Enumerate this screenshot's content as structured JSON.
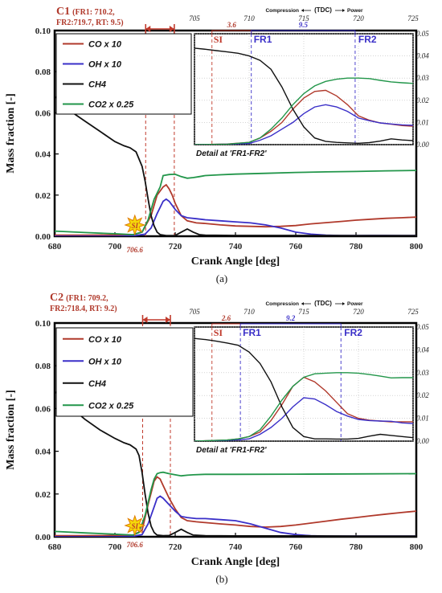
{
  "chart_data": [
    {
      "type": "line",
      "panel_label": "(a)",
      "case_label": "C1",
      "case_detail_line1": "(FR1: 710.2,",
      "case_detail_line2": "FR2:719.7, RT: 9.5)",
      "xlabel": "Crank Angle [deg]",
      "ylabel": "Mass fraction [-]",
      "xlim": [
        680,
        800
      ],
      "ylim": [
        0,
        0.1
      ],
      "x_ticks": [
        "680",
        "700",
        "720",
        "740",
        "760",
        "780",
        "800"
      ],
      "y_ticks": [
        "0.00",
        "0.02",
        "0.04",
        "0.06",
        "0.08",
        "0.10"
      ],
      "si_label": "SI",
      "si_angle_label": "706.6",
      "si_angle": 706.6,
      "fr1": 710.2,
      "fr2": 719.7,
      "legend": [
        "CO x 10",
        "OH x 10",
        "CH4",
        "CO2 x 0.25"
      ],
      "series": [
        {
          "name": "CO x 10",
          "color": "#b0392b",
          "x": [
            680,
            690,
            700,
            706,
            709,
            712,
            714,
            716,
            717,
            718,
            719,
            720,
            722,
            724,
            727,
            730,
            735,
            740,
            745,
            750,
            755,
            760,
            765,
            770,
            775,
            780,
            785,
            790,
            795,
            800
          ],
          "y": [
            0.0005,
            0.0005,
            0.0006,
            0.0007,
            0.002,
            0.01,
            0.02,
            0.024,
            0.025,
            0.023,
            0.02,
            0.016,
            0.01,
            0.0075,
            0.0065,
            0.0062,
            0.0055,
            0.005,
            0.0048,
            0.0046,
            0.0048,
            0.0052,
            0.006,
            0.0066,
            0.0072,
            0.0078,
            0.0083,
            0.0087,
            0.009,
            0.0093
          ]
        },
        {
          "name": "OH x 10",
          "color": "#3a2fc8",
          "x": [
            680,
            690,
            700,
            706,
            710,
            712,
            714,
            716,
            717,
            718,
            719,
            720,
            722,
            724,
            727,
            730,
            735,
            740,
            745,
            750,
            755,
            760,
            765,
            770,
            775,
            780,
            785,
            790,
            795,
            800
          ],
          "y": [
            0.0,
            0.0,
            0.0,
            0.0002,
            0.001,
            0.004,
            0.011,
            0.017,
            0.018,
            0.017,
            0.015,
            0.013,
            0.01,
            0.009,
            0.0085,
            0.008,
            0.0075,
            0.007,
            0.0065,
            0.0055,
            0.004,
            0.002,
            0.001,
            0.0005,
            0.0003,
            0.0003,
            0.0004,
            0.0004,
            0.0003,
            0.0003
          ]
        },
        {
          "name": "CH4",
          "color": "#111111",
          "x": [
            680,
            685,
            690,
            695,
            700,
            703,
            705,
            707,
            709,
            710,
            711,
            712,
            713,
            714,
            715,
            717,
            719,
            720,
            722,
            724,
            726,
            728,
            730,
            740,
            760,
            780,
            800
          ],
          "y": [
            0.068,
            0.061,
            0.056,
            0.051,
            0.046,
            0.044,
            0.043,
            0.041,
            0.034,
            0.027,
            0.018,
            0.01,
            0.005,
            0.002,
            0.0008,
            0.0003,
            0.0003,
            0.0004,
            0.002,
            0.0035,
            0.002,
            0.0008,
            0.0005,
            0.0004,
            0.0004,
            0.0003,
            0.0003
          ]
        },
        {
          "name": "CO2 x 0.25",
          "color": "#22964a",
          "x": [
            680,
            690,
            700,
            706,
            709,
            711,
            713,
            715,
            716,
            718,
            720,
            722,
            724,
            726,
            728,
            730,
            735,
            740,
            750,
            760,
            770,
            780,
            790,
            800
          ],
          "y": [
            0.0025,
            0.0018,
            0.0012,
            0.0008,
            0.002,
            0.008,
            0.018,
            0.024,
            0.0295,
            0.03,
            0.0301,
            0.029,
            0.0282,
            0.0285,
            0.029,
            0.0295,
            0.0299,
            0.0302,
            0.0306,
            0.031,
            0.0313,
            0.0315,
            0.0318,
            0.032
          ]
        }
      ],
      "inset": {
        "caption": "Detail at 'FR1-FR2'",
        "direction_left": "Compression",
        "direction_mid": "(TDC)",
        "direction_right": "Power",
        "xlim": [
          705,
          725
        ],
        "ylim": [
          0,
          0.05
        ],
        "x_ticks": [
          "705",
          "710",
          "715",
          "720",
          "725"
        ],
        "y_ticks": [
          "0.00",
          "0.01",
          "0.02",
          "0.03",
          "0.04",
          "0.05"
        ],
        "si_label": "SI",
        "fr1_label": "FR1",
        "fr2_label": "FR2",
        "si_to_fr1_label": "3.6",
        "fr1_to_fr2_label": "9.5",
        "si": 706.6,
        "fr1": 710.2,
        "fr2": 719.7,
        "series": [
          {
            "name": "CO x 10",
            "color": "#b0392b",
            "x": [
              705,
              708,
              710,
              711,
              712,
              713,
              714,
              715,
              716,
              717,
              718,
              719,
              720,
              721,
              722,
              723,
              724,
              725
            ],
            "y": [
              0.0,
              0.0003,
              0.001,
              0.003,
              0.006,
              0.01,
              0.016,
              0.021,
              0.024,
              0.0245,
              0.022,
              0.018,
              0.013,
              0.011,
              0.0098,
              0.0092,
              0.0086,
              0.0083
            ]
          },
          {
            "name": "OH x 10",
            "color": "#3a2fc8",
            "x": [
              705,
              708,
              710,
              711,
              712,
              713,
              714,
              715,
              716,
              717,
              718,
              719,
              720,
              721,
              722,
              723,
              724,
              725
            ],
            "y": [
              0.0,
              0.0002,
              0.0005,
              0.002,
              0.004,
              0.007,
              0.01,
              0.014,
              0.017,
              0.018,
              0.017,
              0.015,
              0.012,
              0.0108,
              0.0098,
              0.0093,
              0.0089,
              0.0087
            ]
          },
          {
            "name": "CH4",
            "color": "#111111",
            "x": [
              705,
              706,
              707,
              708,
              709,
              710,
              711,
              712,
              713,
              714,
              715,
              716,
              717,
              718,
              719,
              720,
              721,
              722,
              723,
              724,
              725
            ],
            "y": [
              0.0435,
              0.043,
              0.0424,
              0.0418,
              0.0412,
              0.04,
              0.038,
              0.034,
              0.026,
              0.016,
              0.008,
              0.003,
              0.0015,
              0.001,
              0.0008,
              0.0006,
              0.0009,
              0.0016,
              0.0026,
              0.0021,
              0.0018
            ]
          },
          {
            "name": "CO2 x 0.25",
            "color": "#22964a",
            "x": [
              705,
              708,
              710,
              711,
              712,
              713,
              714,
              715,
              716,
              717,
              718,
              719,
              720,
              721,
              722,
              723,
              724,
              725
            ],
            "y": [
              0.0,
              0.0002,
              0.001,
              0.003,
              0.007,
              0.012,
              0.018,
              0.023,
              0.0265,
              0.0285,
              0.0295,
              0.03,
              0.03,
              0.0298,
              0.029,
              0.0283,
              0.0279,
              0.0276
            ]
          }
        ]
      }
    },
    {
      "type": "line",
      "panel_label": "(b)",
      "case_label": "C2",
      "case_detail_line1": "(FR1: 709.2,",
      "case_detail_line2": "FR2:718.4, RT: 9.2)",
      "xlabel": "Crank Angle [deg]",
      "ylabel": "Mass fraction [-]",
      "xlim": [
        680,
        800
      ],
      "ylim": [
        0,
        0.1
      ],
      "x_ticks": [
        "680",
        "700",
        "720",
        "740",
        "760",
        "780",
        "800"
      ],
      "y_ticks": [
        "0.00",
        "0.02",
        "0.04",
        "0.06",
        "0.08",
        "0.10"
      ],
      "si_label": "SI",
      "si_angle_label": "706.6",
      "si_angle": 706.6,
      "fr1": 709.2,
      "fr2": 718.4,
      "legend": [
        "CO x 10",
        "OH x 10",
        "CH4",
        "CO2 x 0.25"
      ],
      "series": [
        {
          "name": "CO x 10",
          "color": "#b0392b",
          "x": [
            680,
            690,
            700,
            706,
            709,
            711,
            713,
            714,
            715,
            716,
            718,
            720,
            722,
            724,
            727,
            730,
            735,
            740,
            745,
            750,
            755,
            760,
            765,
            770,
            775,
            780,
            785,
            790,
            795,
            800
          ],
          "y": [
            0.0005,
            0.0005,
            0.0006,
            0.0007,
            0.003,
            0.015,
            0.026,
            0.028,
            0.027,
            0.024,
            0.018,
            0.013,
            0.009,
            0.0075,
            0.007,
            0.0066,
            0.006,
            0.0055,
            0.0048,
            0.0045,
            0.0048,
            0.0055,
            0.0064,
            0.0073,
            0.0082,
            0.009,
            0.0098,
            0.0106,
            0.0113,
            0.012
          ]
        },
        {
          "name": "OH x 10",
          "color": "#3a2fc8",
          "x": [
            680,
            690,
            700,
            706,
            709,
            711,
            713,
            714,
            715,
            716,
            718,
            720,
            722,
            724,
            727,
            730,
            735,
            740,
            745,
            750,
            755,
            760,
            765,
            770,
            775,
            780,
            785,
            790,
            795,
            800
          ],
          "y": [
            0.0,
            0.0,
            0.0,
            0.0002,
            0.001,
            0.006,
            0.014,
            0.018,
            0.019,
            0.018,
            0.015,
            0.012,
            0.0095,
            0.009,
            0.0085,
            0.0085,
            0.008,
            0.0075,
            0.006,
            0.004,
            0.002,
            0.001,
            0.0005,
            0.0003,
            0.0003,
            0.0003,
            0.0003,
            0.0003,
            0.0003,
            0.0003
          ]
        },
        {
          "name": "CH4",
          "color": "#111111",
          "x": [
            680,
            685,
            690,
            695,
            700,
            703,
            705,
            707,
            708,
            709,
            710,
            711,
            712,
            713,
            714,
            716,
            718,
            720,
            722,
            724,
            726,
            730,
            740,
            760,
            780,
            800
          ],
          "y": [
            0.068,
            0.061,
            0.055,
            0.05,
            0.046,
            0.044,
            0.043,
            0.041,
            0.038,
            0.03,
            0.02,
            0.011,
            0.005,
            0.002,
            0.0008,
            0.0005,
            0.0006,
            0.002,
            0.0035,
            0.002,
            0.0008,
            0.0005,
            0.0004,
            0.0004,
            0.0003,
            0.0003
          ]
        },
        {
          "name": "CO2 x 0.25",
          "color": "#22964a",
          "x": [
            680,
            690,
            700,
            706,
            708,
            710,
            712,
            713,
            714,
            715,
            716,
            718,
            720,
            722,
            724,
            726,
            730,
            740,
            760,
            780,
            800
          ],
          "y": [
            0.0025,
            0.0018,
            0.0012,
            0.0008,
            0.002,
            0.01,
            0.022,
            0.027,
            0.0295,
            0.03,
            0.0302,
            0.0295,
            0.029,
            0.0285,
            0.0288,
            0.029,
            0.0292,
            0.0292,
            0.0293,
            0.0294,
            0.0295
          ]
        }
      ],
      "inset": {
        "caption": "Detail at 'FR1-FR2'",
        "direction_left": "Compression",
        "direction_mid": "(TDC)",
        "direction_right": "Power",
        "xlim": [
          705,
          725
        ],
        "ylim": [
          0,
          0.05
        ],
        "x_ticks": [
          "705",
          "710",
          "715",
          "720",
          "725"
        ],
        "y_ticks": [
          "0.00",
          "0.01",
          "0.02",
          "0.03",
          "0.04",
          "0.05"
        ],
        "si_label": "SI",
        "fr1_label": "FR1",
        "fr2_label": "FR2",
        "si_to_fr1_label": "2.6",
        "fr1_to_fr2_label": "9.2",
        "si": 706.6,
        "fr1": 709.2,
        "fr2": 718.4,
        "series": [
          {
            "name": "CO x 10",
            "color": "#b0392b",
            "x": [
              705,
              708,
              709,
              710,
              711,
              712,
              713,
              714,
              715,
              716,
              717,
              718,
              719,
              720,
              721,
              722,
              723,
              724,
              725
            ],
            "y": [
              0.0,
              0.0005,
              0.001,
              0.002,
              0.004,
              0.009,
              0.016,
              0.024,
              0.028,
              0.026,
              0.022,
              0.017,
              0.012,
              0.01,
              0.0092,
              0.0088,
              0.0084,
              0.0085,
              0.0085
            ]
          },
          {
            "name": "OH x 10",
            "color": "#3a2fc8",
            "x": [
              705,
              708,
              709,
              710,
              711,
              712,
              713,
              714,
              715,
              716,
              717,
              718,
              719,
              720,
              721,
              722,
              723,
              724,
              725
            ],
            "y": [
              0.0,
              0.0003,
              0.0006,
              0.001,
              0.003,
              0.006,
              0.01,
              0.015,
              0.019,
              0.0185,
              0.016,
              0.013,
              0.011,
              0.0095,
              0.009,
              0.0088,
              0.0087,
              0.008,
              0.0077
            ]
          },
          {
            "name": "CH4",
            "color": "#111111",
            "x": [
              705,
              706,
              707,
              708,
              709,
              710,
              711,
              712,
              713,
              714,
              715,
              716,
              717,
              718,
              719,
              720,
              721,
              722,
              723,
              724,
              725
            ],
            "y": [
              0.045,
              0.0445,
              0.0438,
              0.043,
              0.042,
              0.039,
              0.034,
              0.026,
              0.015,
              0.006,
              0.002,
              0.001,
              0.001,
              0.0009,
              0.0009,
              0.0012,
              0.0022,
              0.003,
              0.0025,
              0.002,
              0.0015
            ]
          },
          {
            "name": "CO2 x 0.25",
            "color": "#22964a",
            "x": [
              705,
              708,
              709,
              710,
              711,
              712,
              713,
              714,
              715,
              716,
              717,
              718,
              719,
              720,
              721,
              722,
              723,
              724,
              725
            ],
            "y": [
              0.0,
              0.0005,
              0.001,
              0.002,
              0.005,
              0.011,
              0.018,
              0.024,
              0.028,
              0.0295,
              0.0298,
              0.03,
              0.03,
              0.0298,
              0.0292,
              0.0285,
              0.0277,
              0.0278,
              0.0278
            ]
          }
        ]
      }
    }
  ]
}
